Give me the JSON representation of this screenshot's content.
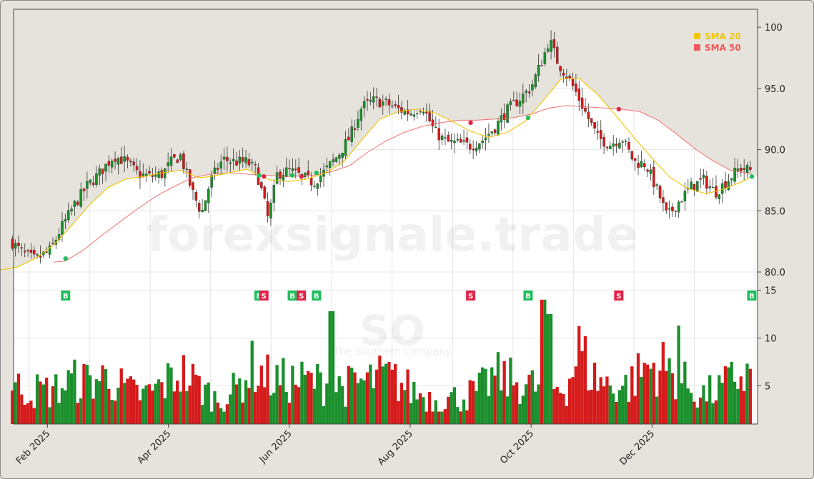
{
  "chart_data": {
    "type": "candlestick",
    "ticker": "SO",
    "company": "The Southern Company",
    "watermark": "forexsignale.trade",
    "x_tick_labels": [
      "Feb 2025",
      "Apr 2025",
      "Jun 2025",
      "Aug 2025",
      "Oct 2025",
      "Dec 2025"
    ],
    "price_axis": {
      "ticks": [
        "80.0",
        "85.0",
        "90.0",
        "95.0",
        "100"
      ],
      "ylim": [
        80,
        101
      ]
    },
    "volume_axis": {
      "ticks": [
        "5",
        "10",
        "15"
      ],
      "ylim": [
        1,
        16
      ]
    },
    "legend": {
      "placement": "top-right",
      "items": [
        {
          "label": "SMA 20",
          "color": "#f3c400"
        },
        {
          "label": "SMA 50",
          "color": "#ef5a5a"
        }
      ]
    },
    "colors": {
      "up": "#1a8f2c",
      "down": "#d41a1a",
      "buy": "#1fbe5a",
      "sell": "#e0244a"
    },
    "signals": [
      {
        "type": "B",
        "month": 1.6,
        "price": 81.1
      },
      {
        "type": "B",
        "month": 4.8,
        "price": 87.9
      },
      {
        "type": "S",
        "month": 4.88,
        "price": 87.8
      },
      {
        "type": "B",
        "month": 5.35,
        "price": 87.9
      },
      {
        "type": "S",
        "month": 5.5,
        "price": 87.8
      },
      {
        "type": "B",
        "month": 5.75,
        "price": 88.1
      },
      {
        "type": "S",
        "month": 8.3,
        "price": 92.2
      },
      {
        "type": "B",
        "month": 9.25,
        "price": 92.6
      },
      {
        "type": "S",
        "month": 10.75,
        "price": 93.3
      },
      {
        "type": "B",
        "month": 12.95,
        "price": 87.8
      }
    ],
    "close_series": [
      [
        0.7,
        82.5
      ],
      [
        0.9,
        81.5
      ],
      [
        1.1,
        81.0
      ],
      [
        1.35,
        81.8
      ],
      [
        1.55,
        83.8
      ],
      [
        1.75,
        85.5
      ],
      [
        1.95,
        87.0
      ],
      [
        2.15,
        88.0
      ],
      [
        2.4,
        89.5
      ],
      [
        2.6,
        89.0
      ],
      [
        2.8,
        88.0
      ],
      [
        3.0,
        87.8
      ],
      [
        3.2,
        88.0
      ],
      [
        3.35,
        89.0
      ],
      [
        3.5,
        89.5
      ],
      [
        3.7,
        86.5
      ],
      [
        3.85,
        84.8
      ],
      [
        4.0,
        87.5
      ],
      [
        4.2,
        89.2
      ],
      [
        4.4,
        89.0
      ],
      [
        4.6,
        89.0
      ],
      [
        4.75,
        88.3
      ],
      [
        4.85,
        86.5
      ],
      [
        4.95,
        84.3
      ],
      [
        5.1,
        88.0
      ],
      [
        5.3,
        88.3
      ],
      [
        5.5,
        87.8
      ],
      [
        5.7,
        87.3
      ],
      [
        5.9,
        88.3
      ],
      [
        6.1,
        89.5
      ],
      [
        6.3,
        91.0
      ],
      [
        6.5,
        93.5
      ],
      [
        6.7,
        94.0
      ],
      [
        6.9,
        93.8
      ],
      [
        7.1,
        93.3
      ],
      [
        7.3,
        93.0
      ],
      [
        7.5,
        93.6
      ],
      [
        7.7,
        91.5
      ],
      [
        7.9,
        90.6
      ],
      [
        8.1,
        90.5
      ],
      [
        8.3,
        90.3
      ],
      [
        8.5,
        90.8
      ],
      [
        8.7,
        91.8
      ],
      [
        8.9,
        93.2
      ],
      [
        9.1,
        94.1
      ],
      [
        9.3,
        95.1
      ],
      [
        9.5,
        97.5
      ],
      [
        9.6,
        99.0
      ],
      [
        9.75,
        97.0
      ],
      [
        9.9,
        96.0
      ],
      [
        10.05,
        94.6
      ],
      [
        10.2,
        93.0
      ],
      [
        10.4,
        91.0
      ],
      [
        10.6,
        90.4
      ],
      [
        10.8,
        91.0
      ],
      [
        11.0,
        89.0
      ],
      [
        11.2,
        88.8
      ],
      [
        11.4,
        86.5
      ],
      [
        11.55,
        84.5
      ],
      [
        11.75,
        85.8
      ],
      [
        11.95,
        87.0
      ],
      [
        12.15,
        87.5
      ],
      [
        12.35,
        86.5
      ],
      [
        12.55,
        87.5
      ],
      [
        12.75,
        88.5
      ],
      [
        12.95,
        88.3
      ]
    ],
    "sma20_series": [
      [
        0.45,
        80.1
      ],
      [
        0.8,
        80.4
      ],
      [
        1.1,
        81.1
      ],
      [
        1.4,
        82.2
      ],
      [
        1.7,
        83.8
      ],
      [
        2.0,
        85.5
      ],
      [
        2.3,
        86.9
      ],
      [
        2.6,
        87.6
      ],
      [
        2.9,
        87.8
      ],
      [
        3.2,
        88.1
      ],
      [
        3.5,
        88.3
      ],
      [
        3.8,
        87.7
      ],
      [
        4.0,
        87.8
      ],
      [
        4.3,
        88.1
      ],
      [
        4.6,
        88.4
      ],
      [
        4.8,
        87.9
      ],
      [
        5.0,
        87.5
      ],
      [
        5.3,
        87.4
      ],
      [
        5.6,
        87.6
      ],
      [
        5.9,
        88.1
      ],
      [
        6.2,
        89.0
      ],
      [
        6.5,
        90.8
      ],
      [
        6.8,
        92.5
      ],
      [
        7.1,
        93.1
      ],
      [
        7.4,
        93.3
      ],
      [
        7.7,
        93.0
      ],
      [
        8.0,
        92.3
      ],
      [
        8.3,
        91.5
      ],
      [
        8.6,
        91.0
      ],
      [
        8.9,
        91.4
      ],
      [
        9.2,
        92.3
      ],
      [
        9.5,
        94.0
      ],
      [
        9.8,
        95.8
      ],
      [
        10.1,
        95.8
      ],
      [
        10.4,
        94.5
      ],
      [
        10.7,
        92.8
      ],
      [
        11.0,
        91.0
      ],
      [
        11.3,
        89.3
      ],
      [
        11.6,
        87.7
      ],
      [
        11.9,
        86.8
      ],
      [
        12.2,
        86.4
      ],
      [
        12.5,
        86.8
      ],
      [
        12.8,
        87.4
      ],
      [
        12.95,
        87.8
      ]
    ],
    "sma50_series": [
      [
        1.4,
        80.8
      ],
      [
        1.6,
        80.9
      ],
      [
        1.9,
        81.8
      ],
      [
        2.2,
        83.0
      ],
      [
        2.5,
        84.1
      ],
      [
        2.8,
        85.2
      ],
      [
        3.1,
        86.2
      ],
      [
        3.4,
        87.0
      ],
      [
        3.7,
        87.7
      ],
      [
        4.0,
        88.0
      ],
      [
        4.3,
        88.1
      ],
      [
        4.6,
        88.0
      ],
      [
        4.9,
        87.9
      ],
      [
        5.3,
        87.8
      ],
      [
        5.7,
        87.9
      ],
      [
        6.0,
        88.2
      ],
      [
        6.3,
        88.7
      ],
      [
        6.6,
        89.8
      ],
      [
        6.9,
        90.7
      ],
      [
        7.2,
        91.4
      ],
      [
        7.5,
        91.9
      ],
      [
        7.8,
        92.2
      ],
      [
        8.1,
        92.4
      ],
      [
        8.4,
        92.4
      ],
      [
        8.7,
        92.5
      ],
      [
        9.0,
        92.6
      ],
      [
        9.3,
        92.9
      ],
      [
        9.6,
        93.4
      ],
      [
        9.9,
        93.6
      ],
      [
        10.2,
        93.5
      ],
      [
        10.5,
        93.4
      ],
      [
        10.8,
        93.3
      ],
      [
        11.1,
        93.1
      ],
      [
        11.4,
        92.4
      ],
      [
        11.7,
        91.3
      ],
      [
        12.0,
        90.1
      ],
      [
        12.3,
        89.1
      ],
      [
        12.6,
        88.3
      ],
      [
        12.95,
        88.0
      ]
    ],
    "volume_profile": [
      [
        0.4,
        6.5
      ],
      [
        0.7,
        5.0
      ],
      [
        1.0,
        4.5
      ],
      [
        1.4,
        4.5
      ],
      [
        1.7,
        5.5
      ],
      [
        2.0,
        5.5
      ],
      [
        2.3,
        6.0
      ],
      [
        2.6,
        4.5
      ],
      [
        2.9,
        4.0
      ],
      [
        3.2,
        5.0
      ],
      [
        3.5,
        6.5
      ],
      [
        3.8,
        5.0
      ],
      [
        4.1,
        3.5
      ],
      [
        4.4,
        4.5
      ],
      [
        4.7,
        7.0
      ],
      [
        4.9,
        6.0
      ],
      [
        5.1,
        5.5
      ],
      [
        5.4,
        5.5
      ],
      [
        5.7,
        5.5
      ],
      [
        6.0,
        5.0
      ],
      [
        6.3,
        5.0
      ],
      [
        6.6,
        5.5
      ],
      [
        6.9,
        6.0
      ],
      [
        7.2,
        5.0
      ],
      [
        7.5,
        4.0
      ],
      [
        7.8,
        3.5
      ],
      [
        8.1,
        3.8
      ],
      [
        8.4,
        4.3
      ],
      [
        8.7,
        6.0
      ],
      [
        9.0,
        5.5
      ],
      [
        9.3,
        5.0
      ],
      [
        9.6,
        4.8
      ],
      [
        9.9,
        5.0
      ],
      [
        10.1,
        9.0
      ],
      [
        10.3,
        6.0
      ],
      [
        10.6,
        5.0
      ],
      [
        10.9,
        5.0
      ],
      [
        11.2,
        7.0
      ],
      [
        11.5,
        7.0
      ],
      [
        11.8,
        5.5
      ],
      [
        12.1,
        4.0
      ],
      [
        12.4,
        4.5
      ],
      [
        12.7,
        6.0
      ],
      [
        13.0,
        6.0
      ]
    ],
    "volume_spikes": [
      [
        6.0,
        12.8
      ],
      [
        9.5,
        14.0
      ],
      [
        9.6,
        12.5
      ],
      [
        11.75,
        11.3
      ]
    ]
  }
}
